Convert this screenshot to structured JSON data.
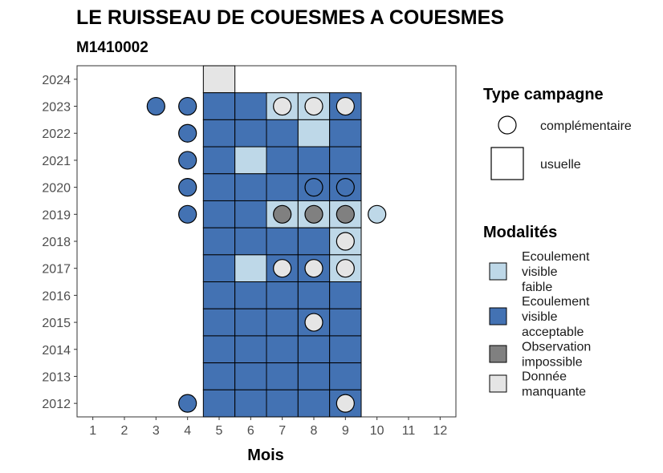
{
  "chart_data": {
    "type": "heatmap",
    "title": "LE RUISSEAU DE COUESMES A COUESMES",
    "subtitle": "M1410002",
    "xlabel": "Mois",
    "ylabel": "",
    "xlim": [
      0.5,
      12.5
    ],
    "ylim": [
      2011.5,
      2024.5
    ],
    "x_ticks": [
      "1",
      "2",
      "3",
      "4",
      "5",
      "6",
      "7",
      "8",
      "9",
      "10",
      "11",
      "12"
    ],
    "y_ticks": [
      "2012",
      "2013",
      "2014",
      "2015",
      "2016",
      "2017",
      "2018",
      "2019",
      "2020",
      "2021",
      "2022",
      "2023",
      "2024"
    ],
    "grid": false,
    "modalities": [
      {
        "key": "faible",
        "label": [
          "Ecoulement",
          "visible",
          "faible"
        ],
        "color": "#bed8e8"
      },
      {
        "key": "acceptable",
        "label": [
          "Ecoulement",
          "visible",
          "acceptable"
        ],
        "color": "#4372b3"
      },
      {
        "key": "impossible",
        "label": [
          "Observation",
          "impossible"
        ],
        "color": "#808080"
      },
      {
        "key": "manquante",
        "label": [
          "Donnée",
          "manquante"
        ],
        "color": "#e5e5e5"
      }
    ],
    "campaign_types": [
      {
        "key": "complementaire",
        "label": "complémentaire",
        "shape": "circle"
      },
      {
        "key": "usuelle",
        "label": "usuelle",
        "shape": "square"
      }
    ],
    "legend_titles": {
      "campaign": "Type campagne",
      "modalities": "Modalités"
    },
    "legend_position": "right",
    "usual_observations": [
      {
        "year": 2024,
        "month": 5,
        "modality": "manquante"
      },
      {
        "year": 2023,
        "month": 5,
        "modality": "acceptable"
      },
      {
        "year": 2023,
        "month": 6,
        "modality": "acceptable"
      },
      {
        "year": 2023,
        "month": 7,
        "modality": "faible"
      },
      {
        "year": 2023,
        "month": 8,
        "modality": "faible"
      },
      {
        "year": 2023,
        "month": 9,
        "modality": "acceptable"
      },
      {
        "year": 2022,
        "month": 5,
        "modality": "acceptable"
      },
      {
        "year": 2022,
        "month": 6,
        "modality": "acceptable"
      },
      {
        "year": 2022,
        "month": 7,
        "modality": "acceptable"
      },
      {
        "year": 2022,
        "month": 8,
        "modality": "faible"
      },
      {
        "year": 2022,
        "month": 9,
        "modality": "acceptable"
      },
      {
        "year": 2021,
        "month": 5,
        "modality": "acceptable"
      },
      {
        "year": 2021,
        "month": 6,
        "modality": "faible"
      },
      {
        "year": 2021,
        "month": 7,
        "modality": "acceptable"
      },
      {
        "year": 2021,
        "month": 8,
        "modality": "acceptable"
      },
      {
        "year": 2021,
        "month": 9,
        "modality": "acceptable"
      },
      {
        "year": 2020,
        "month": 5,
        "modality": "acceptable"
      },
      {
        "year": 2020,
        "month": 6,
        "modality": "acceptable"
      },
      {
        "year": 2020,
        "month": 7,
        "modality": "acceptable"
      },
      {
        "year": 2020,
        "month": 8,
        "modality": "acceptable"
      },
      {
        "year": 2020,
        "month": 9,
        "modality": "acceptable"
      },
      {
        "year": 2019,
        "month": 5,
        "modality": "acceptable"
      },
      {
        "year": 2019,
        "month": 6,
        "modality": "acceptable"
      },
      {
        "year": 2019,
        "month": 7,
        "modality": "faible"
      },
      {
        "year": 2019,
        "month": 8,
        "modality": "faible"
      },
      {
        "year": 2019,
        "month": 9,
        "modality": "faible"
      },
      {
        "year": 2018,
        "month": 5,
        "modality": "acceptable"
      },
      {
        "year": 2018,
        "month": 6,
        "modality": "acceptable"
      },
      {
        "year": 2018,
        "month": 7,
        "modality": "acceptable"
      },
      {
        "year": 2018,
        "month": 8,
        "modality": "acceptable"
      },
      {
        "year": 2018,
        "month": 9,
        "modality": "faible"
      },
      {
        "year": 2017,
        "month": 5,
        "modality": "acceptable"
      },
      {
        "year": 2017,
        "month": 6,
        "modality": "faible"
      },
      {
        "year": 2017,
        "month": 7,
        "modality": "acceptable"
      },
      {
        "year": 2017,
        "month": 8,
        "modality": "acceptable"
      },
      {
        "year": 2017,
        "month": 9,
        "modality": "faible"
      },
      {
        "year": 2016,
        "month": 5,
        "modality": "acceptable"
      },
      {
        "year": 2016,
        "month": 6,
        "modality": "acceptable"
      },
      {
        "year": 2016,
        "month": 7,
        "modality": "acceptable"
      },
      {
        "year": 2016,
        "month": 8,
        "modality": "acceptable"
      },
      {
        "year": 2016,
        "month": 9,
        "modality": "acceptable"
      },
      {
        "year": 2015,
        "month": 5,
        "modality": "acceptable"
      },
      {
        "year": 2015,
        "month": 6,
        "modality": "acceptable"
      },
      {
        "year": 2015,
        "month": 7,
        "modality": "acceptable"
      },
      {
        "year": 2015,
        "month": 8,
        "modality": "acceptable"
      },
      {
        "year": 2015,
        "month": 9,
        "modality": "acceptable"
      },
      {
        "year": 2014,
        "month": 5,
        "modality": "acceptable"
      },
      {
        "year": 2014,
        "month": 6,
        "modality": "acceptable"
      },
      {
        "year": 2014,
        "month": 7,
        "modality": "acceptable"
      },
      {
        "year": 2014,
        "month": 8,
        "modality": "acceptable"
      },
      {
        "year": 2014,
        "month": 9,
        "modality": "acceptable"
      },
      {
        "year": 2013,
        "month": 5,
        "modality": "acceptable"
      },
      {
        "year": 2013,
        "month": 6,
        "modality": "acceptable"
      },
      {
        "year": 2013,
        "month": 7,
        "modality": "acceptable"
      },
      {
        "year": 2013,
        "month": 8,
        "modality": "acceptable"
      },
      {
        "year": 2013,
        "month": 9,
        "modality": "acceptable"
      },
      {
        "year": 2012,
        "month": 5,
        "modality": "acceptable"
      },
      {
        "year": 2012,
        "month": 6,
        "modality": "acceptable"
      },
      {
        "year": 2012,
        "month": 7,
        "modality": "acceptable"
      },
      {
        "year": 2012,
        "month": 8,
        "modality": "acceptable"
      },
      {
        "year": 2012,
        "month": 9,
        "modality": "acceptable"
      }
    ],
    "complementary_observations": [
      {
        "year": 2023,
        "month": 3,
        "modality": "acceptable"
      },
      {
        "year": 2023,
        "month": 4,
        "modality": "acceptable"
      },
      {
        "year": 2023,
        "month": 7,
        "modality": "manquante"
      },
      {
        "year": 2023,
        "month": 8,
        "modality": "manquante"
      },
      {
        "year": 2023,
        "month": 9,
        "modality": "manquante"
      },
      {
        "year": 2022,
        "month": 4,
        "modality": "acceptable"
      },
      {
        "year": 2021,
        "month": 4,
        "modality": "acceptable"
      },
      {
        "year": 2020,
        "month": 4,
        "modality": "acceptable"
      },
      {
        "year": 2020,
        "month": 8,
        "modality": "acceptable"
      },
      {
        "year": 2020,
        "month": 9,
        "modality": "acceptable"
      },
      {
        "year": 2019,
        "month": 4,
        "modality": "acceptable"
      },
      {
        "year": 2019,
        "month": 7,
        "modality": "impossible"
      },
      {
        "year": 2019,
        "month": 8,
        "modality": "impossible"
      },
      {
        "year": 2019,
        "month": 9,
        "modality": "impossible"
      },
      {
        "year": 2019,
        "month": 10,
        "modality": "faible"
      },
      {
        "year": 2018,
        "month": 9,
        "modality": "manquante"
      },
      {
        "year": 2017,
        "month": 7,
        "modality": "manquante"
      },
      {
        "year": 2017,
        "month": 8,
        "modality": "manquante"
      },
      {
        "year": 2017,
        "month": 9,
        "modality": "manquante"
      },
      {
        "year": 2015,
        "month": 8,
        "modality": "manquante"
      },
      {
        "year": 2012,
        "month": 4,
        "modality": "acceptable"
      },
      {
        "year": 2012,
        "month": 9,
        "modality": "manquante"
      }
    ]
  }
}
